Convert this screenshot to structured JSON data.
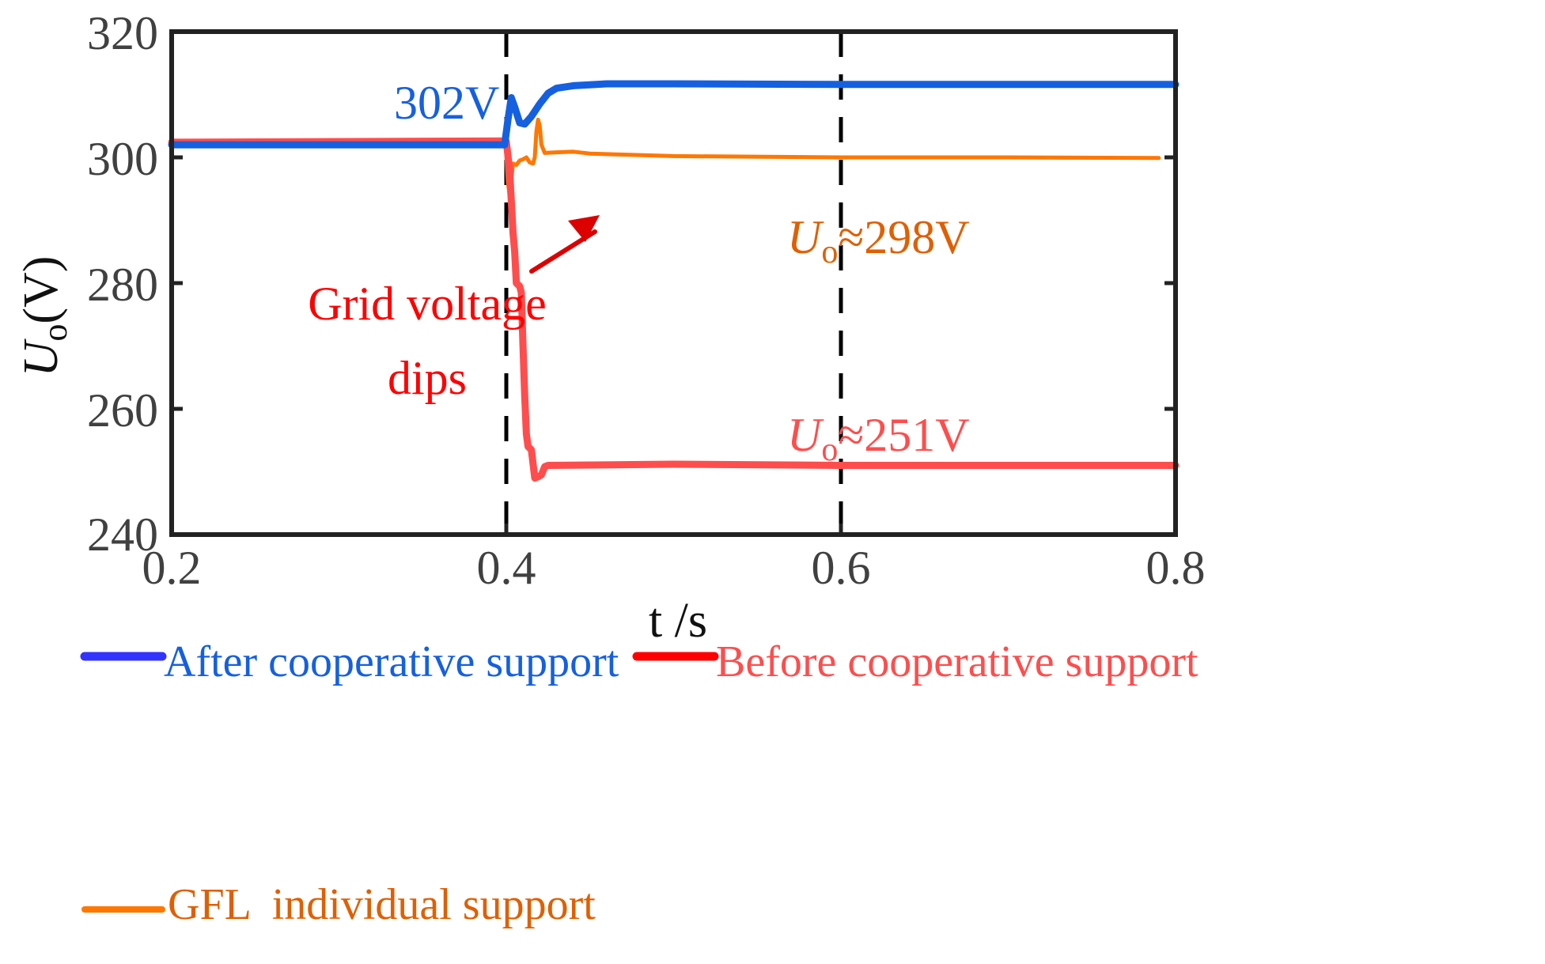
{
  "chart_data": {
    "type": "line",
    "title": "",
    "xlabel": "t /s",
    "ylabel_main": "U",
    "ylabel_sub": "o",
    "ylabel_unit": "(V)",
    "xlim": [
      0.2,
      0.8
    ],
    "ylim": [
      240,
      320
    ],
    "xticks": [
      0.2,
      0.4,
      0.6,
      0.8
    ],
    "xtick_labels": [
      "0.2",
      "0.4",
      "0.6",
      "0.8"
    ],
    "yticks": [
      240,
      260,
      280,
      300,
      320
    ],
    "ytick_labels": [
      "240",
      "260",
      "280",
      "300",
      "320"
    ],
    "grid": false,
    "vlines": [
      {
        "x": 0.4,
        "style": "dashed",
        "color": "#000000"
      },
      {
        "x": 0.6,
        "style": "dashed",
        "color": "#000000"
      }
    ],
    "series": [
      {
        "name": "After cooperative support",
        "color": "#1560e0",
        "legend_color": "#3333ff",
        "width": 9,
        "points": [
          [
            0.2,
            302
          ],
          [
            0.399,
            302
          ],
          [
            0.401,
            306
          ],
          [
            0.403,
            309.5
          ],
          [
            0.405,
            308
          ],
          [
            0.408,
            305.5
          ],
          [
            0.411,
            305.3
          ],
          [
            0.415,
            306.5
          ],
          [
            0.42,
            308.5
          ],
          [
            0.425,
            310.2
          ],
          [
            0.43,
            311
          ],
          [
            0.44,
            311.4
          ],
          [
            0.46,
            311.7
          ],
          [
            0.5,
            311.7
          ],
          [
            0.6,
            311.6
          ],
          [
            0.7,
            311.6
          ],
          [
            0.8,
            311.6
          ]
        ]
      },
      {
        "name": "Before cooperative support",
        "color": "#ff4d4d",
        "legend_color": "#ff0000",
        "width": 9,
        "points": [
          [
            0.2,
            302.4
          ],
          [
            0.399,
            302.6
          ],
          [
            0.4,
            302.5
          ],
          [
            0.402,
            298
          ],
          [
            0.404,
            288
          ],
          [
            0.405,
            285
          ],
          [
            0.406,
            280
          ],
          [
            0.408,
            279.5
          ],
          [
            0.409,
            278.5
          ],
          [
            0.41,
            270
          ],
          [
            0.411,
            262
          ],
          [
            0.412,
            256
          ],
          [
            0.413,
            254
          ],
          [
            0.415,
            253.5
          ],
          [
            0.417,
            249
          ],
          [
            0.419,
            249.2
          ],
          [
            0.421,
            249.5
          ],
          [
            0.423,
            250.8
          ],
          [
            0.425,
            251
          ],
          [
            0.5,
            251.2
          ],
          [
            0.6,
            251
          ],
          [
            0.7,
            251
          ],
          [
            0.8,
            251
          ]
        ]
      },
      {
        "name": "GFL  individual support",
        "color": "#ff7700",
        "legend_color": "#ff7700",
        "width": 5,
        "points": [
          [
            0.4,
            300.5
          ],
          [
            0.401,
            296
          ],
          [
            0.402,
            294
          ],
          [
            0.404,
            299
          ],
          [
            0.406,
            298.8
          ],
          [
            0.408,
            299.5
          ],
          [
            0.41,
            299.7
          ],
          [
            0.412,
            300
          ],
          [
            0.414,
            299.2
          ],
          [
            0.416,
            299
          ],
          [
            0.417,
            300
          ],
          [
            0.418,
            304.2
          ],
          [
            0.419,
            306
          ],
          [
            0.42,
            305
          ],
          [
            0.421,
            302
          ],
          [
            0.423,
            300.7
          ],
          [
            0.43,
            300.8
          ],
          [
            0.44,
            300.9
          ],
          [
            0.45,
            300.6
          ],
          [
            0.5,
            300.2
          ],
          [
            0.6,
            300
          ],
          [
            0.7,
            300
          ],
          [
            0.79,
            299.9
          ]
        ]
      }
    ],
    "annotations": [
      {
        "text": "302V",
        "color": "#1560e0",
        "x": 0.27,
        "y": 310.5
      },
      {
        "text_main": "U",
        "text_sub": "o",
        "text_rest": "≈298V",
        "color": "#e05f00",
        "x": 0.5,
        "y": 293.5
      },
      {
        "text_main": "U",
        "text_sub": "o",
        "text_rest": "≈251V",
        "color": "#ff4d4d",
        "x": 0.5,
        "y": 254.5
      },
      {
        "text_line1": "Grid voltage",
        "text_line2": "dips",
        "color": "#ff0000",
        "arrow": true
      }
    ],
    "legend": {
      "position": "bottom",
      "entries": [
        {
          "label": "After cooperative support",
          "color": "#3333ff",
          "text_color": "#1560e0"
        },
        {
          "label": "Before cooperative support",
          "color": "#ff0000",
          "text_color": "#ff4d4d"
        },
        {
          "label": "GFL  individual support",
          "color": "#ff7700",
          "text_color": "#e05f00"
        }
      ]
    }
  }
}
